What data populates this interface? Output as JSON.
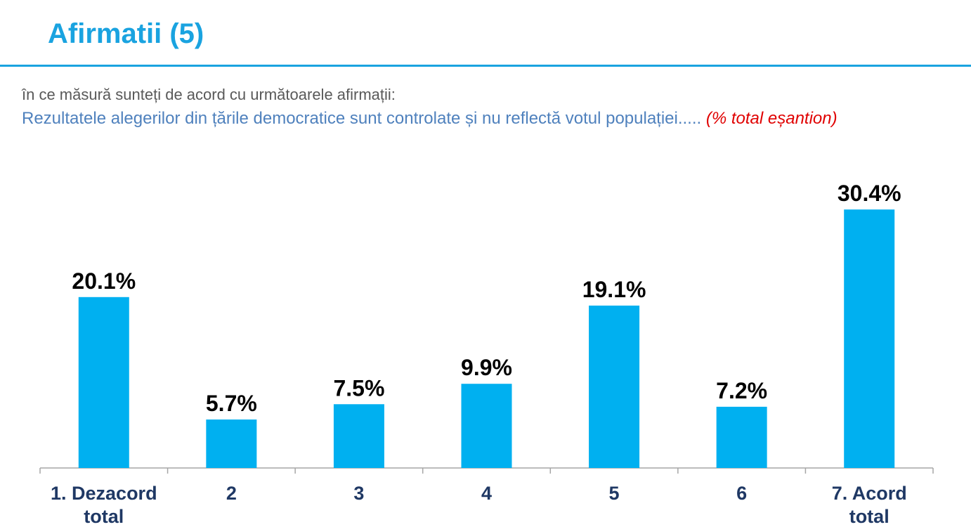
{
  "colors": {
    "title": "#1AA3E0",
    "rule": "#1AA3E0",
    "question": "#595959",
    "statement": "#4F81BD",
    "note": "#E00000",
    "bar": "#00B0F0",
    "axis": "#A6A6A6",
    "category_label": "#1F3864"
  },
  "header": {
    "title": "Afirmatii (5)"
  },
  "question": {
    "text": "în ce măsură sunteți de acord cu următoarele afirmații:"
  },
  "statement": {
    "text": "Rezultatele alegerilor din țările democratice sunt controlate și nu reflectă votul populației..... ",
    "note": "(% total eșantion)"
  },
  "chart_data": {
    "type": "bar",
    "categories": [
      "1. Dezacord total",
      "2",
      "3",
      "4",
      "5",
      "6",
      "7. Acord total"
    ],
    "category_lines": [
      [
        "1. Dezacord",
        "total"
      ],
      [
        "2"
      ],
      [
        "3"
      ],
      [
        "4"
      ],
      [
        "5"
      ],
      [
        "6"
      ],
      [
        "7. Acord",
        "total"
      ]
    ],
    "values": [
      20.1,
      5.7,
      7.5,
      9.9,
      19.1,
      7.2,
      30.4
    ],
    "data_labels": [
      "20.1%",
      "5.7%",
      "7.5%",
      "9.9%",
      "19.1%",
      "7.2%",
      "30.4%"
    ],
    "title": "",
    "xlabel": "",
    "ylabel": "",
    "ylim": [
      0,
      33
    ],
    "grid": false,
    "legend": "none"
  }
}
